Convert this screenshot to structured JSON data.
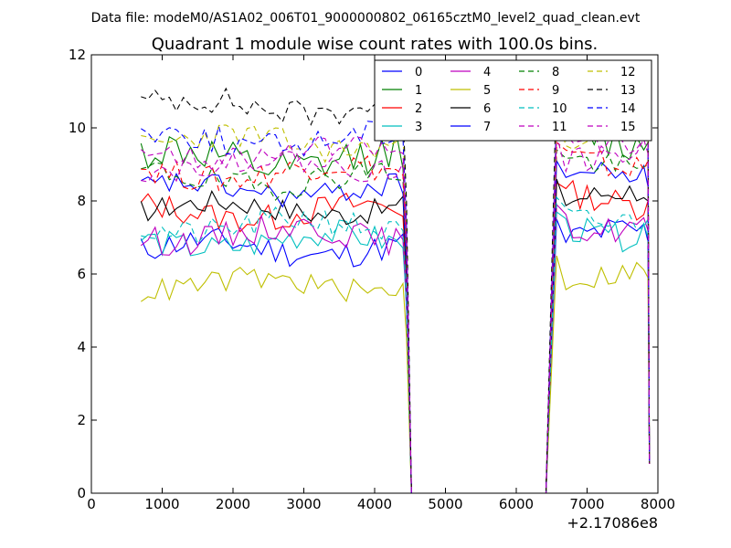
{
  "header": {
    "datafile": "Data file: modeM0/AS1A02_006T01_9000000802_06165cztM0_level2_quad_clean.evt"
  },
  "chart_data": {
    "type": "line",
    "title": "Quadrant 1 module wise count rates with 100.0s bins.",
    "xlabel": "",
    "ylabel": "",
    "xlim": [
      0,
      8000
    ],
    "ylim": [
      0,
      12
    ],
    "x_offset_label": "+2.17086e8",
    "xticks": [
      0,
      1000,
      2000,
      3000,
      4000,
      5000,
      6000,
      7000,
      8000
    ],
    "xtick_labels": [
      "0",
      "1000",
      "2000",
      "3000",
      "4000",
      "5000",
      "6000",
      "7000",
      "8000"
    ],
    "yticks": [
      0,
      2,
      4,
      6,
      8,
      10,
      12
    ],
    "ytick_labels": [
      "0",
      "2",
      "4",
      "6",
      "8",
      "10",
      "12"
    ],
    "legend_position": "top-right",
    "legend_columns": 4,
    "gap": {
      "drop_start": 4420,
      "zero_from": 4520,
      "zero_to": 6420,
      "rise_end": 6570
    },
    "series": [
      {
        "name": "0",
        "color": "#0000ff",
        "dash": "solid",
        "mean": 6.7,
        "amp": 0.35,
        "seed": 11,
        "end": 6.9
      },
      {
        "name": "1",
        "color": "#008000",
        "dash": "solid",
        "mean": 9.1,
        "amp": 0.5,
        "seed": 12,
        "end": 9.6
      },
      {
        "name": "2",
        "color": "#ff0000",
        "dash": "solid",
        "mean": 7.7,
        "amp": 0.35,
        "seed": 13,
        "end": 8.0
      },
      {
        "name": "3",
        "color": "#00bfbf",
        "dash": "solid",
        "mean": 6.9,
        "amp": 0.35,
        "seed": 14,
        "end": 7.0
      },
      {
        "name": "4",
        "color": "#bf00bf",
        "dash": "solid",
        "mean": 7.1,
        "amp": 0.35,
        "seed": 15,
        "end": 7.2
      },
      {
        "name": "5",
        "color": "#bfbf00",
        "dash": "solid",
        "mean": 5.7,
        "amp": 0.3,
        "seed": 16,
        "end": 5.9
      },
      {
        "name": "6",
        "color": "#000000",
        "dash": "solid",
        "mean": 7.8,
        "amp": 0.3,
        "seed": 17,
        "end": 8.0
      },
      {
        "name": "7",
        "color": "#0000ff",
        "dash": "solid",
        "mean": 8.3,
        "amp": 0.3,
        "seed": 18,
        "end": 8.4
      },
      {
        "name": "8",
        "color": "#008000",
        "dash": "dashed",
        "mean": 8.6,
        "amp": 0.35,
        "seed": 19,
        "end": 9.0
      },
      {
        "name": "9",
        "color": "#ff0000",
        "dash": "dashed",
        "mean": 8.8,
        "amp": 0.35,
        "seed": 20,
        "end": 9.1
      },
      {
        "name": "10",
        "color": "#00bfbf",
        "dash": "dashed",
        "mean": 7.3,
        "amp": 0.35,
        "seed": 21,
        "end": 7.5
      },
      {
        "name": "11",
        "color": "#bf00bf",
        "dash": "dashed",
        "mean": 9.0,
        "amp": 0.3,
        "seed": 22,
        "end": 9.3
      },
      {
        "name": "12",
        "color": "#bfbf00",
        "dash": "dashed",
        "mean": 9.6,
        "amp": 0.35,
        "seed": 23,
        "end": 10.0
      },
      {
        "name": "13",
        "color": "#000000",
        "dash": "dashed",
        "mean": 10.6,
        "amp": 0.35,
        "seed": 24,
        "end": 11.0
      },
      {
        "name": "14",
        "color": "#0000ff",
        "dash": "dashed",
        "mean": 9.7,
        "amp": 0.35,
        "seed": 25,
        "end": 10.1
      },
      {
        "name": "15",
        "color": "#bf00bf",
        "dash": "dashed",
        "mean": 9.3,
        "amp": 0.3,
        "seed": 26,
        "end": 9.6
      }
    ]
  }
}
